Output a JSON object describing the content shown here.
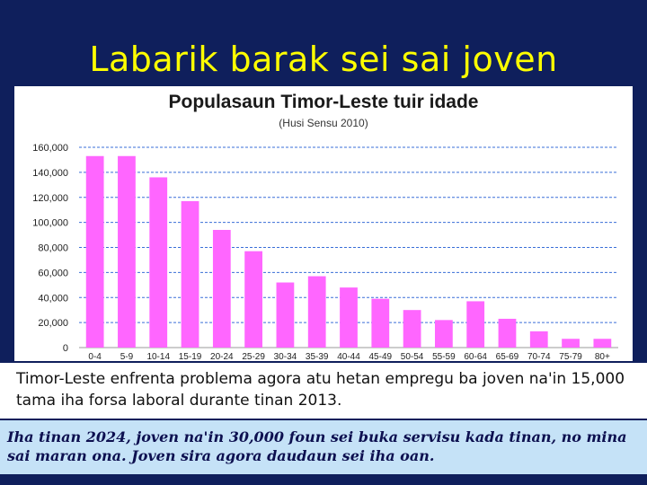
{
  "slide": {
    "title": "Labarik barak sei sai joven",
    "body_text": "Timor-Leste enfrenta problema agora atu hetan empregu ba joven na'in 15,000 tama iha forsa laboral durante tinan 2013.",
    "footer_text": "Iha tinan 2024, joven na'in 30,000 foun sei buka servisu kada tinan, no mina sai maran ona.  Joven sira agora daudaun sei iha oan."
  },
  "colors": {
    "background": "#0f1f5c",
    "title": "#ffff00",
    "bar": "#ff66ff",
    "gridline": "#3a6fd8",
    "footer_bg": "#c5e2f7"
  },
  "chart_data": {
    "type": "bar",
    "title": "Populasaun Timor-Leste tuir idade",
    "subtitle": "(Husi Sensu 2010)",
    "xlabel": "",
    "ylabel": "",
    "ylim": [
      0,
      160000
    ],
    "yticks": [
      "0",
      "20,000",
      "40,000",
      "60,000",
      "80,000",
      "100,000",
      "120,000",
      "140,000",
      "160,000"
    ],
    "grid": true,
    "categories": [
      "0-4",
      "5-9",
      "10-14",
      "15-19",
      "20-24",
      "25-29",
      "30-34",
      "35-39",
      "40-44",
      "45-49",
      "50-54",
      "55-59",
      "60-64",
      "65-69",
      "70-74",
      "75-79",
      "80+"
    ],
    "values": [
      153000,
      153000,
      136000,
      117000,
      94000,
      77000,
      52000,
      57000,
      48000,
      39000,
      30000,
      22000,
      37000,
      23000,
      13000,
      7000,
      7000
    ]
  }
}
